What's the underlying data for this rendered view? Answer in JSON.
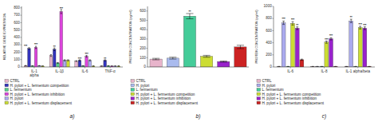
{
  "chart_data": [
    {
      "type": "bar",
      "title": "a)",
      "ylabel": "RELATIVE GENE EXPRESSION",
      "categories": [
        "IL-1\nalpha",
        "IL-1β",
        "IL-6",
        "TNF-α"
      ],
      "series": [
        {
          "name": "CTRL",
          "color": "#e8b4cb",
          "values": [
            18,
            155,
            80,
            12
          ],
          "errors": [
            3,
            12,
            6,
            2
          ]
        },
        {
          "name": "H. pylori + L. fermentum competition",
          "color": "#3333bb",
          "values": [
            250,
            240,
            90,
            90
          ],
          "errors": [
            12,
            18,
            8,
            8
          ]
        },
        {
          "name": "L. fermentum",
          "color": "#55cc88",
          "values": [
            15,
            55,
            15,
            15
          ],
          "errors": [
            2,
            6,
            2,
            2
          ]
        },
        {
          "name": "H. pylori + L. fermentum inhibition",
          "color": "#dd44dd",
          "values": [
            265,
            750,
            145,
            12
          ],
          "errors": [
            15,
            28,
            12,
            2
          ]
        },
        {
          "name": "H. pylori",
          "color": "#aaaaee",
          "values": [
            18,
            90,
            90,
            12
          ],
          "errors": [
            2,
            8,
            8,
            2
          ]
        },
        {
          "name": "H. pylori + L. fermentum displacement",
          "color": "#ccdd33",
          "values": [
            12,
            90,
            12,
            12
          ],
          "errors": [
            2,
            8,
            2,
            2
          ]
        }
      ],
      "ylim": [
        0,
        820
      ],
      "yticks": [
        0,
        100,
        200,
        300,
        400,
        500,
        600,
        700,
        800
      ],
      "grid": false,
      "legend": "bottom",
      "annotations": [
        {
          "text": "***",
          "category": 0,
          "series": 0,
          "y": 270
        },
        {
          "text": "***",
          "category": 0,
          "series": 3,
          "y": 285
        },
        {
          "text": "**",
          "category": 1,
          "series": 1,
          "y": 258
        },
        {
          "text": "***",
          "category": 1,
          "series": 3,
          "y": 780
        },
        {
          "text": "***",
          "category": 2,
          "series": 1,
          "y": 98
        },
        {
          "text": "***",
          "category": 2,
          "series": 3,
          "y": 158
        },
        {
          "text": "**",
          "category": 3,
          "series": 1,
          "y": 98
        }
      ]
    },
    {
      "type": "bar",
      "title": "b)",
      "ylabel": "PROTEIN CONCENTRATION (pg/ml)",
      "categories": [
        "CTRL",
        "H. pylori",
        "L. fermentum",
        "H. pylori + L. fermentum competition",
        "H. pylori + L. fermentum inhibition",
        "H. pylori + L. fermentum displacement"
      ],
      "values": [
        85,
        95,
        545,
        115,
        58,
        215
      ],
      "errors": [
        8,
        10,
        28,
        10,
        6,
        18
      ],
      "colors": [
        "#e8b4cb",
        "#aabbee",
        "#44cc99",
        "#ccdd33",
        "#9922cc",
        "#cc2222"
      ],
      "ylim": [
        0,
        650
      ],
      "yticks": [
        0,
        100,
        200,
        300,
        400,
        500,
        600
      ],
      "grid": false,
      "legend": "bottom",
      "tick_labels": "y",
      "annotations": [
        {
          "text": "**",
          "category": 2,
          "y": 580
        }
      ]
    },
    {
      "type": "bar",
      "title": "c)",
      "ylabel": "PROTEIN CONCENTRATION (pg/ml)",
      "categories": [
        "IL-6",
        "IL-8",
        "IL-1 alpha/beta"
      ],
      "series": [
        {
          "name": "CTRL",
          "color": "#e8b4cb",
          "values": [
            8,
            8,
            8
          ],
          "errors": [
            2,
            2,
            2
          ]
        },
        {
          "name": "H. pylori",
          "color": "#aaaaee",
          "values": [
            730,
            8,
            760
          ],
          "errors": [
            28,
            2,
            28
          ]
        },
        {
          "name": "L. fermentum",
          "color": "#44cc99",
          "values": [
            8,
            8,
            8
          ],
          "errors": [
            2,
            2,
            2
          ]
        },
        {
          "name": "H. pylori + L. fermentum competition",
          "color": "#ccdd33",
          "values": [
            720,
            410,
            650
          ],
          "errors": [
            28,
            18,
            22
          ]
        },
        {
          "name": "H. pylori + L. fermentum inhibition",
          "color": "#9922cc",
          "values": [
            640,
            465,
            640
          ],
          "errors": [
            22,
            18,
            22
          ]
        },
        {
          "name": "H. pylori + L. fermentum displacement",
          "color": "#cc2222",
          "values": [
            120,
            8,
            8
          ],
          "errors": [
            10,
            2,
            2
          ]
        }
      ],
      "ylim": [
        0,
        1000
      ],
      "yticks": [
        0,
        200,
        400,
        600,
        800,
        1000
      ],
      "grid": false,
      "legend": "bottom",
      "annotations": [
        {
          "text": "***",
          "category": 0,
          "series": 1,
          "y": 768
        },
        {
          "text": "***",
          "category": 0,
          "series": 3,
          "y": 758
        },
        {
          "text": "**",
          "category": 0,
          "series": 4,
          "y": 672
        },
        {
          "text": "***",
          "category": 1,
          "series": 3,
          "y": 438
        },
        {
          "text": "***",
          "category": 1,
          "series": 4,
          "y": 492
        },
        {
          "text": "**",
          "category": 2,
          "series": 1,
          "y": 798
        },
        {
          "text": "***",
          "category": 2,
          "series": 3,
          "y": 682
        },
        {
          "text": "***",
          "category": 2,
          "series": 4,
          "y": 672
        }
      ]
    }
  ]
}
